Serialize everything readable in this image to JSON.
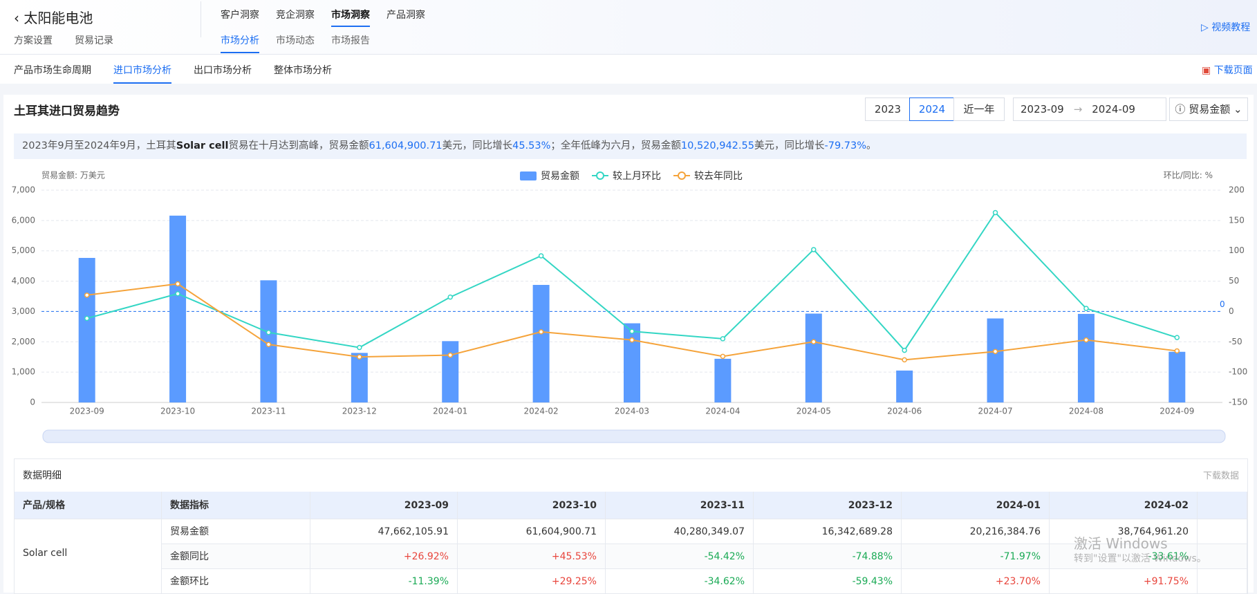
{
  "header": {
    "back_title": "太阳能电池",
    "links": [
      "方案设置",
      "贸易记录"
    ],
    "top_tabs": [
      "客户洞察",
      "竞企洞察",
      "市场洞察",
      "产品洞察"
    ],
    "sub_tabs": [
      "市场分析",
      "市场动态",
      "市场报告"
    ],
    "help": "视频教程"
  },
  "nav": {
    "tabs": [
      "产品市场生命周期",
      "进口市场分析",
      "出口市场分析",
      "整体市场分析"
    ],
    "download": "下载页面"
  },
  "panel": {
    "title": "土耳其进口贸易趋势",
    "year_buttons": [
      "2023",
      "2024",
      "近一年"
    ],
    "date_start": "2023-09",
    "date_end": "2024-09",
    "metric_select": "贸易金额",
    "summary": [
      "2023年9月至2024年9月，土耳其",
      "Solar cell",
      "贸易在十月达到高峰，贸易金额",
      "61,604,900.71",
      "美元，同比增长",
      "45.53%",
      "；全年低峰为六月，贸易金额",
      "10,520,942.55",
      "美元，同比增长",
      "-79.73%",
      "。"
    ]
  },
  "chart_data": {
    "type": "bar",
    "y_label": "贸易金额: 万美元",
    "y2_label": "环比/同比: %",
    "categories": [
      "2023-09",
      "2023-10",
      "2023-11",
      "2023-12",
      "2024-01",
      "2024-02",
      "2024-03",
      "2024-04",
      "2024-05",
      "2024-06",
      "2024-07",
      "2024-08",
      "2024-09"
    ],
    "series": [
      {
        "name": "贸易金额",
        "type": "bar",
        "color": "#5b9bff",
        "values": [
          4766,
          6160,
          4028,
          1634,
          2022,
          3876,
          2610,
          1440,
          2930,
          1052,
          2770,
          2920,
          1670
        ]
      },
      {
        "name": "较上月环比",
        "type": "line",
        "axis": "y2",
        "color": "#33d6c4",
        "values": [
          -11.39,
          29.25,
          -34.62,
          -59.43,
          23.7,
          91.75,
          -32.7,
          -45,
          102,
          -64,
          163,
          5,
          -43
        ]
      },
      {
        "name": "较去年同比",
        "type": "line",
        "axis": "y2",
        "color": "#f5a33a",
        "values": [
          26.92,
          45.53,
          -54.42,
          -74.88,
          -71.97,
          -33.61,
          -47,
          -74,
          -50,
          -79.73,
          -66,
          -47,
          -65
        ]
      }
    ],
    "ylim": [
      0,
      7000
    ],
    "yticks": [
      0,
      {
        "value": 1000,
        "label": "1,000"
      },
      {
        "value": 2000,
        "label": "2,000"
      },
      {
        "value": 3000,
        "label": "3,000"
      },
      {
        "value": 4000,
        "label": "4,000"
      },
      {
        "value": 5000,
        "label": "5,000"
      },
      {
        "value": 6000,
        "label": "6,000"
      },
      {
        "value": 7000,
        "label": "7,000"
      }
    ],
    "y2lim": [
      -150,
      200
    ],
    "y2ticks": [
      -150,
      -100,
      -50,
      0,
      50,
      100,
      150,
      200
    ],
    "reference_line": {
      "value": 0,
      "axis": "y2",
      "color": "#1c6ef2"
    },
    "grid": true
  },
  "table": {
    "title": "数据明细",
    "download": "下载数据",
    "columns": [
      "产品/规格",
      "数据指标",
      "2023-09",
      "2023-10",
      "2023-11",
      "2023-12",
      "2024-01",
      "2024-02"
    ],
    "product": "Solar cell",
    "rows": [
      {
        "metric": "贸易金额",
        "cells": [
          "47,662,105.91",
          "61,604,900.71",
          "40,280,349.07",
          "16,342,689.28",
          "20,216,384.76",
          "38,764,961.20"
        ]
      },
      {
        "metric": "金额同比",
        "cells": [
          "+26.92%",
          "+45.53%",
          "-54.42%",
          "-74.88%",
          "-71.97%",
          "-33.61%"
        ]
      },
      {
        "metric": "金额环比",
        "cells": [
          "-11.39%",
          "+29.25%",
          "-34.62%",
          "-59.43%",
          "+23.70%",
          "+91.75%"
        ]
      }
    ]
  },
  "watermark": {
    "title": "激活 Windows",
    "text": "转到\"设置\"以激活 Windows。"
  }
}
